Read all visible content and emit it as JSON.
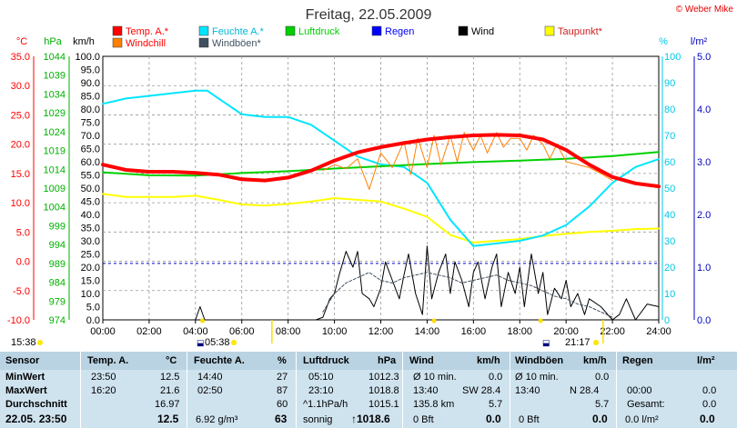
{
  "copyright": "© Weber Mike",
  "chart_data": {
    "type": "line",
    "title": "Freitag, 22.05.2009",
    "x_ticks": [
      "00:00",
      "02:00",
      "04:00",
      "06:00",
      "08:00",
      "10:00",
      "12:00",
      "14:00",
      "16:00",
      "18:00",
      "20:00",
      "22:00",
      "24:00"
    ],
    "axes": [
      {
        "unit": "°C",
        "ticks": [
          "-10.0",
          "-5.0",
          "0.0",
          "5.0",
          "10.0",
          "15.0",
          "20.0",
          "25.0",
          "30.0",
          "35.0"
        ],
        "color": "#ff0000",
        "range": [
          -10,
          35
        ]
      },
      {
        "unit": "hPa",
        "ticks": [
          "974",
          "979",
          "984",
          "989",
          "994",
          "999",
          "1004",
          "1009",
          "1014",
          "1019",
          "1024",
          "1029",
          "1034",
          "1039",
          "1044"
        ],
        "color": "#00b000",
        "range": [
          974,
          1044
        ]
      },
      {
        "unit": "km/h",
        "ticks": [
          "0.0",
          "5.0",
          "10.0",
          "15.0",
          "20.0",
          "25.0",
          "30.0",
          "35.0",
          "40.0",
          "45.0",
          "50.0",
          "55.0",
          "60.0",
          "65.0",
          "70.0",
          "75.0",
          "80.0",
          "85.0",
          "90.0",
          "95.0",
          "100.0"
        ],
        "color": "#000000",
        "range": [
          0,
          100
        ]
      },
      {
        "unit": "%",
        "ticks": [
          "0",
          "10",
          "20",
          "30",
          "40",
          "50",
          "60",
          "70",
          "80",
          "90",
          "100"
        ],
        "color": "#00c8e6",
        "range": [
          0,
          100
        ]
      },
      {
        "unit": "l/m²",
        "ticks": [
          "0.0",
          "1.0",
          "2.0",
          "3.0",
          "4.0",
          "5.0"
        ],
        "color": "#0000c0",
        "range": [
          0,
          5
        ]
      }
    ],
    "legend": [
      {
        "name": "Temp. A.*",
        "color": "#ff0000"
      },
      {
        "name": "Feuchte A.*",
        "color": "#00e5ff"
      },
      {
        "name": "Luftdruck",
        "color": "#00d000"
      },
      {
        "name": "Regen",
        "color": "#0000ff"
      },
      {
        "name": "Wind",
        "color": "#000000"
      },
      {
        "name": "Taupunkt*",
        "color": "#ffff00"
      },
      {
        "name": "Windchill",
        "color": "#ff8000"
      },
      {
        "name": "Windböen*",
        "color": "#405060"
      }
    ],
    "series": [
      {
        "name": "Temp. A.*",
        "axis": 0,
        "color": "#ff0000",
        "width": 4,
        "x": [
          0,
          1,
          2,
          3,
          4,
          5,
          6,
          7,
          8,
          9,
          10,
          11,
          12,
          13,
          14,
          15,
          16,
          17,
          18,
          19,
          20,
          21,
          22,
          23,
          24
        ],
        "y": [
          16.5,
          15.6,
          15.3,
          15.3,
          15.1,
          14.8,
          14.0,
          13.8,
          14.3,
          15.5,
          17.2,
          18.6,
          19.5,
          20.2,
          20.8,
          21.2,
          21.5,
          21.6,
          21.5,
          20.8,
          19.0,
          16.5,
          14.4,
          13.3,
          12.8
        ]
      },
      {
        "name": "Feuchte A.*",
        "axis": 3,
        "color": "#00e5ff",
        "width": 2,
        "x": [
          0,
          1,
          2,
          3,
          4,
          4.5,
          5,
          6,
          7,
          8,
          9,
          10,
          11,
          12,
          13,
          14,
          15,
          16,
          17,
          18,
          19,
          20,
          21,
          22,
          23,
          24
        ],
        "y": [
          82,
          84,
          85,
          86,
          87,
          87,
          84,
          78,
          77,
          77,
          74,
          68,
          62,
          59,
          58,
          52,
          38,
          28,
          29,
          30,
          32,
          36,
          43,
          52,
          58,
          61
        ]
      },
      {
        "name": "Luftdruck",
        "axis": 1,
        "color": "#00d000",
        "width": 2,
        "x": [
          0,
          2,
          4,
          6,
          8,
          10,
          12,
          14,
          16,
          18,
          20,
          22,
          24
        ],
        "y": [
          1013.2,
          1012.4,
          1012.3,
          1013.0,
          1013.5,
          1014.2,
          1014.8,
          1015.4,
          1015.9,
          1016.3,
          1016.8,
          1017.5,
          1018.6
        ]
      },
      {
        "name": "Taupunkt*",
        "axis": 0,
        "color": "#ffff00",
        "width": 2,
        "x": [
          0,
          1,
          2,
          3,
          4,
          5,
          6,
          7,
          8,
          9,
          10,
          11,
          12,
          13,
          14,
          15,
          16,
          17,
          18,
          19,
          20,
          21,
          22,
          23,
          24
        ],
        "y": [
          11.5,
          11.0,
          11.0,
          11.0,
          11.2,
          10.5,
          9.7,
          9.5,
          9.8,
          10.2,
          10.8,
          10.5,
          10.2,
          9.0,
          7.6,
          4.5,
          3.2,
          3.5,
          3.8,
          4.3,
          4.7,
          5.0,
          5.2,
          5.5,
          5.6
        ]
      },
      {
        "name": "Windchill",
        "axis": 0,
        "color": "#ff8000",
        "width": 1,
        "x": [
          9.5,
          10,
          10.5,
          11,
          11.5,
          12,
          12.5,
          13,
          13.3,
          13.6,
          14,
          14.3,
          14.6,
          15,
          15.3,
          15.6,
          16,
          16.3,
          16.6,
          17,
          17.3,
          17.6,
          18,
          18.3,
          18.6,
          19,
          19.3,
          19.6,
          20,
          20.5,
          21,
          21.5,
          22
        ],
        "y": [
          15.5,
          16.5,
          15.8,
          17.5,
          12.3,
          18.5,
          16.0,
          20.5,
          14.8,
          21.0,
          16.0,
          21.5,
          16.5,
          21.5,
          17.0,
          22.0,
          19.0,
          21.5,
          18.5,
          22.0,
          19.5,
          21.0,
          21.0,
          19.0,
          21.5,
          20.0,
          17.5,
          20.0,
          17.0,
          16.5,
          16.0,
          15.0,
          13.8
        ]
      },
      {
        "name": "Wind",
        "axis": 2,
        "color": "#000000",
        "width": 1,
        "x": [
          0,
          4,
          4.2,
          4.4,
          4.6,
          5,
          9.2,
          9.5,
          9.8,
          10,
          10.2,
          10.5,
          10.8,
          11,
          11.2,
          11.5,
          11.7,
          12,
          12.2,
          12.5,
          12.8,
          13,
          13.2,
          13.5,
          13.8,
          14,
          14.2,
          14.5,
          14.8,
          15,
          15.2,
          15.5,
          15.8,
          16,
          16.2,
          16.5,
          16.8,
          17,
          17.2,
          17.5,
          17.8,
          18,
          18.2,
          18.5,
          18.8,
          19,
          19.2,
          19.5,
          19.8,
          20,
          20.2,
          20.5,
          20.8,
          21,
          21.5,
          22,
          22.3,
          22.6,
          23,
          23.5,
          24
        ],
        "y": [
          0,
          0,
          5,
          0,
          0,
          0,
          0,
          1,
          8,
          10,
          17,
          26,
          20,
          26,
          10,
          8,
          5,
          12,
          22,
          15,
          8,
          17,
          25,
          10,
          2,
          28,
          8,
          18,
          25,
          10,
          22,
          15,
          5,
          18,
          22,
          8,
          20,
          25,
          5,
          18,
          10,
          20,
          5,
          25,
          10,
          18,
          2,
          12,
          8,
          15,
          5,
          10,
          2,
          8,
          5,
          0,
          2,
          8,
          0,
          6,
          5
        ]
      },
      {
        "name": "Windböen*",
        "axis": 2,
        "color": "#405060",
        "width": 1,
        "dash": "3,2",
        "x": [
          9.5,
          10,
          10.5,
          11,
          11.5,
          12,
          12.5,
          13,
          13.5,
          14,
          14.5,
          15,
          15.5,
          16,
          16.5,
          17,
          17.5,
          18,
          18.5,
          19,
          19.5,
          20,
          20.5,
          21,
          21.5,
          22
        ],
        "y": [
          3,
          10,
          14,
          16,
          18,
          15,
          14,
          16,
          17,
          18,
          17,
          16,
          14,
          15,
          16,
          17,
          15,
          14,
          13,
          11,
          9,
          8,
          6,
          5,
          3,
          1
        ]
      }
    ],
    "reference_line": {
      "axis": 1,
      "value": 989,
      "color": "#0000c0",
      "style": "dashed"
    },
    "markers": [
      {
        "x": 4.3,
        "color": "#ffdd00"
      },
      {
        "x": 14.3,
        "color": "#ffdd00"
      },
      {
        "x": 18.9,
        "color": "#ffdd00"
      }
    ],
    "sun": {
      "rise": "05:38",
      "set": "21:17",
      "left_label": "15:38"
    },
    "grid": true
  },
  "table": {
    "headers": {
      "sensor": "Sensor",
      "temp": "Temp. A.",
      "temp_unit": "°C",
      "hum": "Feuchte A.",
      "hum_unit": "%",
      "press": "Luftdruck",
      "press_unit": "hPa",
      "wind": "Wind",
      "wind_unit": "km/h",
      "gust": "Windböen",
      "gust_unit": "km/h",
      "rain": "Regen",
      "rain_unit": "l/m²"
    },
    "rows": [
      {
        "label": "MinWert",
        "temp_time": "23:50",
        "temp_val": "12.5",
        "hum_time": "14:40",
        "hum_val": "27",
        "press_time": "05:10",
        "press_val": "1012.3",
        "wind_time": "Ø 10 min.",
        "wind_val": "0.0",
        "gust_time": "Ø 10 min.",
        "gust_val": "0.0",
        "rain_time": "",
        "rain_val": ""
      },
      {
        "label": "MaxWert",
        "temp_time": "16:20",
        "temp_val": "21.6",
        "hum_time": "02:50",
        "hum_val": "87",
        "press_time": "23:10",
        "press_val": "1018.8",
        "wind_time": "13:40",
        "wind_dir": "SW 28.4",
        "wind_val": "",
        "gust_time": "13:40",
        "gust_dir": "N 28.4",
        "gust_val": "",
        "rain_time": "00:00",
        "rain_val": "0.0"
      },
      {
        "label": "Durchschnitt",
        "temp_time": "",
        "temp_val": "16.97",
        "hum_time": "",
        "hum_val": "60",
        "press_time": "^1.1hPa/h",
        "press_val": "1015.1",
        "wind_time": "135.8 km",
        "wind_val": "5.7",
        "gust_time": "",
        "gust_val": "5.7",
        "rain_time": "Gesamt:",
        "rain_val": "0.0"
      },
      {
        "label": "22.05. 23:50",
        "temp_time": "",
        "temp_val": "12.5",
        "hum_time": "6.92 g/m³",
        "hum_val": "63",
        "press_time": "sonnig",
        "press_val": "↑1018.6",
        "wind_time": "0 Bft",
        "wind_val": "0.0",
        "gust_time": "0 Bft",
        "gust_val": "0.0",
        "rain_time": "0.0 l/m²",
        "rain_val": "0.0"
      }
    ]
  }
}
